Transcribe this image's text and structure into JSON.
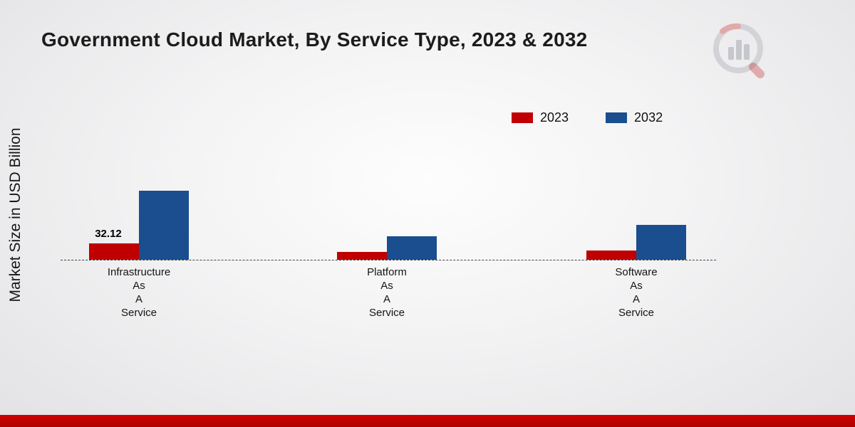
{
  "chart_data": {
    "type": "bar",
    "title": "Government Cloud Market, By Service Type, 2023 & 2032",
    "xlabel": "",
    "ylabel": "Market Size in USD Billion",
    "categories": [
      "Infrastructure As A Service",
      "Platform As A Service",
      "Software As A Service"
    ],
    "series": [
      {
        "name": "2023",
        "color": "#c00000",
        "values": [
          32.12,
          15,
          18
        ]
      },
      {
        "name": "2032",
        "color": "#1a4e8e",
        "values": [
          135,
          46,
          68
        ]
      }
    ],
    "ylim": [
      0,
      150
    ],
    "grid": false,
    "legend_position": "top-right",
    "baseline_style": "dashed",
    "data_labels": [
      {
        "series": 0,
        "category": 0,
        "text": "32.12"
      }
    ]
  },
  "branding": {
    "logo": "market-research-future-logo",
    "footer_color": "#c00000"
  }
}
